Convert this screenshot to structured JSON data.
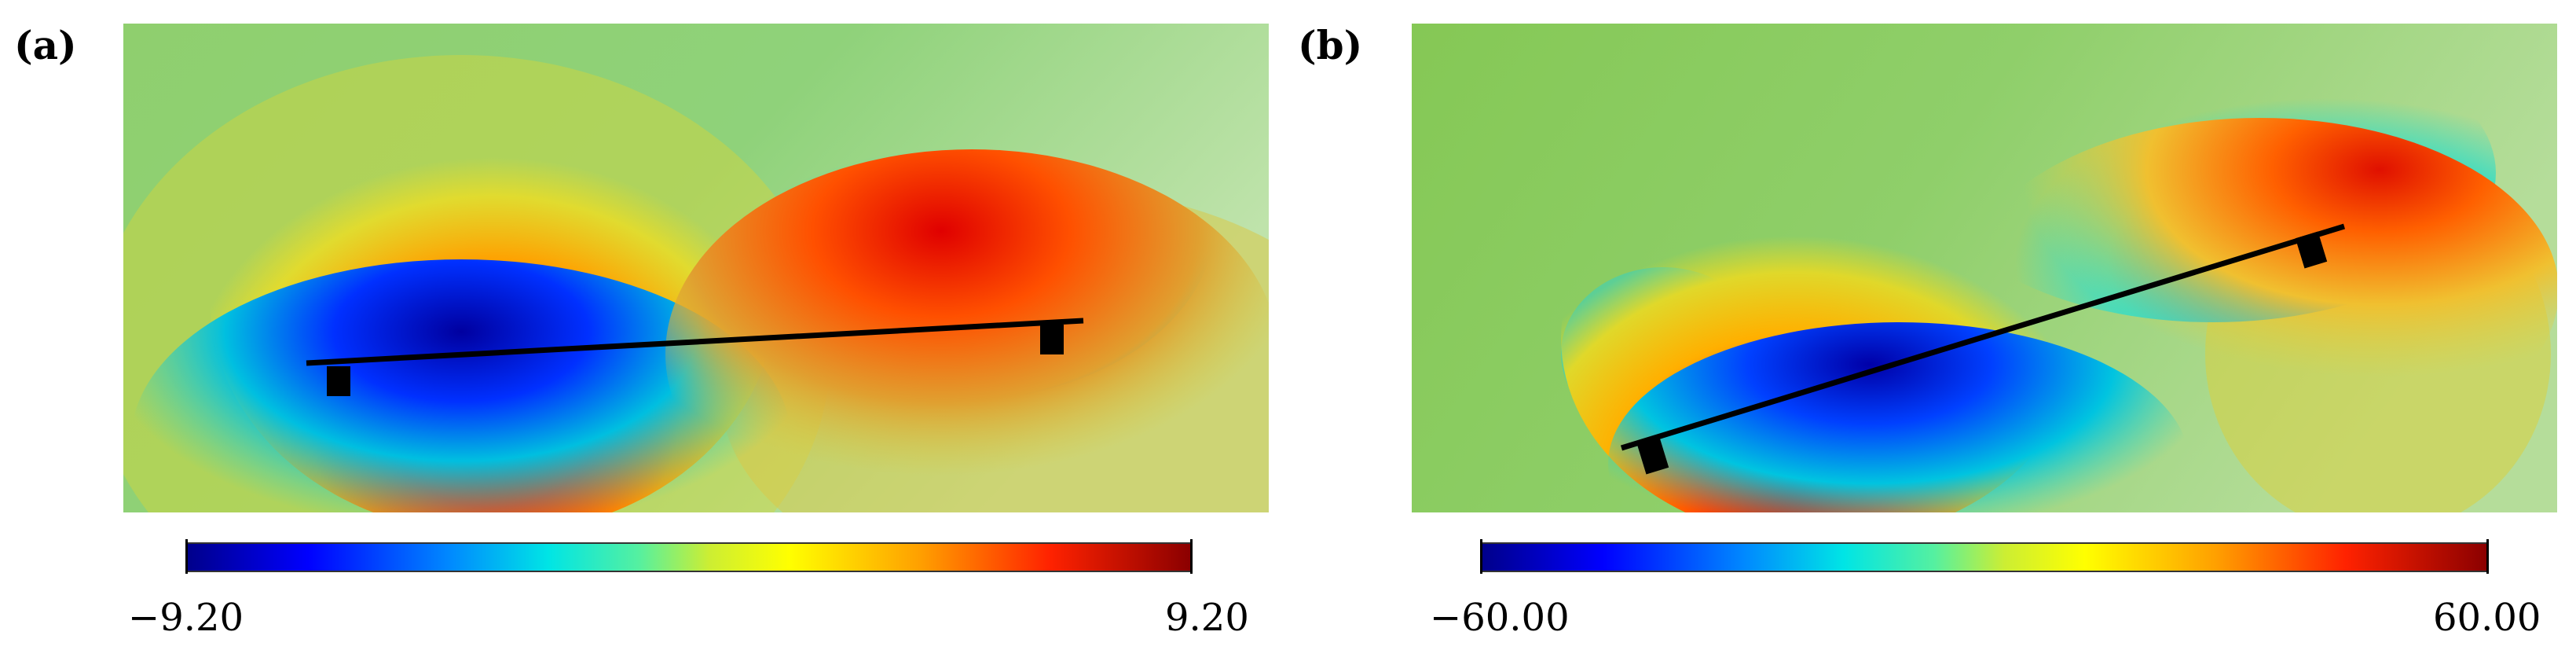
{
  "panels": [
    {
      "label": "(a)",
      "colorbar": {
        "min_label": "−9.20",
        "max_label": "9.20",
        "min": -9.2,
        "max": 9.2
      }
    },
    {
      "label": "(b)",
      "colorbar": {
        "min_label": "−60.00",
        "max_label": "60.00",
        "min": -60.0,
        "max": 60.0
      }
    }
  ],
  "colors": {
    "colormap": [
      "#00008b",
      "#0000ff",
      "#00e5e5",
      "#ffff00",
      "#ff2200",
      "#8b0000"
    ],
    "wing": "#000000"
  }
}
